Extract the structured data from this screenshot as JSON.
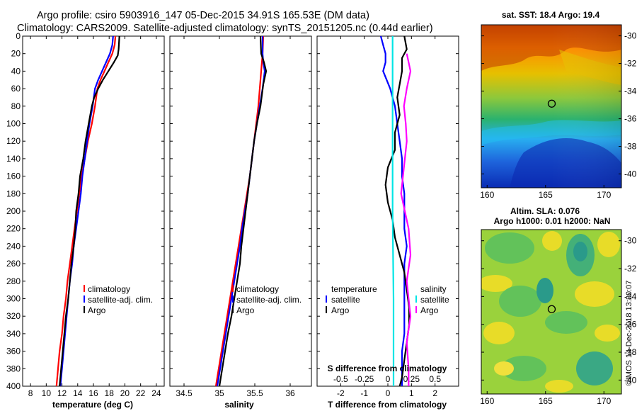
{
  "header": {
    "line1": "Argo profile: csiro 5903916_147 05-Dec-2015 34.91S 165.53E (DM data)",
    "line2": "Climatology: CARS2009. Satellite-adjusted climatology: synTS_20151205.nc (0.44d earlier)"
  },
  "colors": {
    "climatology": "#ff0000",
    "satellite": "#0000ff",
    "argo": "#000000",
    "sal_satellite": "#00e5e5",
    "sal_climatology": "#ff00ff"
  },
  "chart_data": [
    {
      "id": "temperature",
      "type": "line",
      "title": "",
      "xlabel": "temperature (deg C)",
      "ylabel": "",
      "xlim": [
        7,
        25
      ],
      "ylim": [
        400,
        0
      ],
      "xticks": [
        "8",
        "10",
        "12",
        "14",
        "16",
        "18",
        "20",
        "22",
        "24"
      ],
      "yticks": [
        "0",
        "20",
        "40",
        "60",
        "80",
        "100",
        "120",
        "140",
        "160",
        "180",
        "200",
        "220",
        "240",
        "260",
        "280",
        "300",
        "320",
        "340",
        "360",
        "380",
        "400"
      ],
      "legend": [
        "climatology",
        "satellite-adj. clim.",
        "Argo"
      ],
      "series": [
        {
          "name": "climatology",
          "color": "#ff0000",
          "points": [
            [
              18.8,
              0
            ],
            [
              18.7,
              10
            ],
            [
              18.4,
              20
            ],
            [
              17.9,
              30
            ],
            [
              17.4,
              40
            ],
            [
              16.9,
              50
            ],
            [
              16.5,
              60
            ],
            [
              16.2,
              80
            ],
            [
              15.8,
              100
            ],
            [
              15.3,
              120
            ],
            [
              14.9,
              140
            ],
            [
              14.5,
              160
            ],
            [
              14.2,
              180
            ],
            [
              13.9,
              200
            ],
            [
              13.6,
              220
            ],
            [
              13.3,
              240
            ],
            [
              13.0,
              260
            ],
            [
              12.7,
              280
            ],
            [
              12.5,
              300
            ],
            [
              12.2,
              320
            ],
            [
              12.0,
              340
            ],
            [
              11.7,
              360
            ],
            [
              11.5,
              380
            ],
            [
              11.3,
              400
            ]
          ]
        },
        {
          "name": "satellite-adj. clim.",
          "color": "#0000ff",
          "points": [
            [
              18.5,
              0
            ],
            [
              18.4,
              10
            ],
            [
              18.1,
              20
            ],
            [
              17.6,
              30
            ],
            [
              17.1,
              40
            ],
            [
              16.6,
              50
            ],
            [
              16.2,
              60
            ],
            [
              15.9,
              80
            ],
            [
              15.5,
              100
            ],
            [
              15.2,
              120
            ],
            [
              14.9,
              140
            ],
            [
              14.6,
              160
            ],
            [
              14.4,
              180
            ],
            [
              14.1,
              200
            ],
            [
              13.8,
              220
            ],
            [
              13.5,
              240
            ],
            [
              13.3,
              260
            ],
            [
              13.0,
              280
            ],
            [
              12.8,
              300
            ],
            [
              12.6,
              320
            ],
            [
              12.4,
              340
            ],
            [
              12.2,
              360
            ],
            [
              12.0,
              380
            ],
            [
              11.8,
              400
            ]
          ]
        },
        {
          "name": "Argo",
          "color": "#000000",
          "points": [
            [
              19.3,
              0
            ],
            [
              19.2,
              15
            ],
            [
              19.1,
              22
            ],
            [
              18.6,
              30
            ],
            [
              17.9,
              40
            ],
            [
              17.2,
              50
            ],
            [
              16.6,
              60
            ],
            [
              16.1,
              70
            ],
            [
              15.8,
              80
            ],
            [
              15.4,
              100
            ],
            [
              15.0,
              120
            ],
            [
              14.7,
              140
            ],
            [
              14.3,
              160
            ],
            [
              14.1,
              180
            ],
            [
              13.8,
              200
            ],
            [
              13.7,
              220
            ],
            [
              13.5,
              240
            ],
            [
              13.2,
              260
            ],
            [
              13.0,
              280
            ],
            [
              12.8,
              300
            ],
            [
              12.5,
              320
            ],
            [
              12.3,
              340
            ],
            [
              12.1,
              360
            ],
            [
              11.9,
              380
            ],
            [
              11.7,
              400
            ]
          ]
        }
      ]
    },
    {
      "id": "salinity",
      "type": "line",
      "title": "",
      "xlabel": "salinity",
      "ylabel": "",
      "xlim": [
        34.3,
        36.3
      ],
      "ylim": [
        400,
        0
      ],
      "xticks": [
        "34.5",
        "35",
        "35.5",
        "36"
      ],
      "legend": [
        "climatology",
        "satellite-adj. clim.",
        "Argo"
      ],
      "series": [
        {
          "name": "climatology",
          "color": "#ff0000",
          "points": [
            [
              35.62,
              0
            ],
            [
              35.61,
              20
            ],
            [
              35.59,
              40
            ],
            [
              35.57,
              60
            ],
            [
              35.55,
              80
            ],
            [
              35.52,
              100
            ],
            [
              35.49,
              120
            ],
            [
              35.46,
              140
            ],
            [
              35.43,
              160
            ],
            [
              35.39,
              180
            ],
            [
              35.35,
              200
            ],
            [
              35.31,
              220
            ],
            [
              35.27,
              240
            ],
            [
              35.23,
              260
            ],
            [
              35.19,
              280
            ],
            [
              35.15,
              300
            ],
            [
              35.11,
              320
            ],
            [
              35.07,
              340
            ],
            [
              35.03,
              360
            ],
            [
              34.99,
              380
            ],
            [
              34.95,
              400
            ]
          ]
        },
        {
          "name": "satellite-adj. clim.",
          "color": "#0000ff",
          "points": [
            [
              35.61,
              0
            ],
            [
              35.61,
              20
            ],
            [
              35.62,
              30
            ],
            [
              35.64,
              40
            ],
            [
              35.61,
              60
            ],
            [
              35.57,
              80
            ],
            [
              35.53,
              100
            ],
            [
              35.49,
              120
            ],
            [
              35.46,
              140
            ],
            [
              35.43,
              160
            ],
            [
              35.4,
              180
            ],
            [
              35.36,
              200
            ],
            [
              35.32,
              220
            ],
            [
              35.29,
              240
            ],
            [
              35.25,
              260
            ],
            [
              35.21,
              280
            ],
            [
              35.17,
              300
            ],
            [
              35.13,
              320
            ],
            [
              35.09,
              340
            ],
            [
              35.05,
              360
            ],
            [
              35.01,
              380
            ],
            [
              34.97,
              400
            ]
          ]
        },
        {
          "name": "Argo",
          "color": "#000000",
          "points": [
            [
              35.58,
              0
            ],
            [
              35.59,
              20
            ],
            [
              35.63,
              30
            ],
            [
              35.66,
              40
            ],
            [
              35.62,
              55
            ],
            [
              35.58,
              80
            ],
            [
              35.53,
              100
            ],
            [
              35.49,
              120
            ],
            [
              35.46,
              140
            ],
            [
              35.43,
              160
            ],
            [
              35.4,
              180
            ],
            [
              35.37,
              200
            ],
            [
              35.34,
              220
            ],
            [
              35.31,
              240
            ],
            [
              35.29,
              260
            ],
            [
              35.25,
              280
            ],
            [
              35.21,
              300
            ],
            [
              35.17,
              320
            ],
            [
              35.12,
              340
            ],
            [
              35.08,
              360
            ],
            [
              35.04,
              380
            ],
            [
              35.0,
              400
            ]
          ]
        }
      ]
    },
    {
      "id": "difference",
      "type": "line",
      "title": "",
      "xlabel": "T difference from climatology",
      "xlabel_top": "S difference from climatology",
      "ylabel": "",
      "xlim": [
        -3,
        3
      ],
      "ylim": [
        400,
        0
      ],
      "xticks": [
        "-2",
        "-1",
        "0",
        "1",
        "2"
      ],
      "xticks_top": [
        "-0.5",
        "-0.25",
        "0",
        "0.25",
        "0.5"
      ],
      "legend_left_title": "temperature",
      "legend_left": [
        "satellite",
        "Argo"
      ],
      "legend_right_title": "salinity",
      "legend_right": [
        "satellite",
        "Argo"
      ],
      "series": [
        {
          "name": "T satellite",
          "color": "#0000ff",
          "points": [
            [
              -0.3,
              0
            ],
            [
              -0.2,
              10
            ],
            [
              -0.1,
              20
            ],
            [
              -0.1,
              30
            ],
            [
              -0.2,
              40
            ],
            [
              0.1,
              60
            ],
            [
              0.3,
              80
            ],
            [
              0.4,
              100
            ],
            [
              0.5,
              120
            ],
            [
              0.6,
              140
            ],
            [
              0.6,
              160
            ],
            [
              0.7,
              180
            ],
            [
              0.7,
              200
            ],
            [
              0.7,
              220
            ],
            [
              0.8,
              240
            ],
            [
              0.7,
              260
            ],
            [
              0.7,
              280
            ],
            [
              0.7,
              300
            ],
            [
              0.7,
              320
            ],
            [
              0.7,
              340
            ],
            [
              0.6,
              360
            ],
            [
              0.6,
              380
            ],
            [
              0.6,
              400
            ]
          ]
        },
        {
          "name": "T Argo",
          "color": "#000000",
          "points": [
            [
              0.7,
              0
            ],
            [
              0.8,
              15
            ],
            [
              0.6,
              25
            ],
            [
              0.6,
              40
            ],
            [
              0.5,
              55
            ],
            [
              0.4,
              70
            ],
            [
              0.5,
              90
            ],
            [
              0.3,
              110
            ],
            [
              0.3,
              130
            ],
            [
              0.0,
              150
            ],
            [
              -0.1,
              170
            ],
            [
              0.0,
              190
            ],
            [
              0.2,
              210
            ],
            [
              0.3,
              230
            ],
            [
              0.5,
              250
            ],
            [
              0.7,
              270
            ],
            [
              0.8,
              290
            ],
            [
              0.9,
              310
            ],
            [
              0.9,
              330
            ],
            [
              0.8,
              350
            ],
            [
              0.7,
              370
            ],
            [
              0.6,
              390
            ],
            [
              0.5,
              400
            ]
          ]
        },
        {
          "name": "S satellite",
          "color": "#00e5e5",
          "points": [
            [
              0.05,
              0
            ],
            [
              0.05,
              100
            ],
            [
              0.05,
              200
            ],
            [
              0.06,
              300
            ],
            [
              0.06,
              400
            ]
          ]
        },
        {
          "name": "S Argo",
          "color": "#ff00ff",
          "points": [
            [
              0.2,
              20
            ],
            [
              0.24,
              40
            ],
            [
              0.2,
              60
            ],
            [
              0.17,
              80
            ],
            [
              0.19,
              100
            ],
            [
              0.2,
              120
            ],
            [
              0.17,
              150
            ],
            [
              0.14,
              180
            ],
            [
              0.18,
              200
            ],
            [
              0.22,
              220
            ],
            [
              0.24,
              250
            ],
            [
              0.2,
              280
            ],
            [
              0.22,
              300
            ],
            [
              0.24,
              320
            ],
            [
              0.2,
              350
            ],
            [
              0.22,
              380
            ],
            [
              0.22,
              400
            ]
          ]
        }
      ]
    },
    {
      "id": "sst_map",
      "type": "heatmap",
      "title": "sat. SST: 18.4 Argo: 19.4",
      "xticks": [
        "160",
        "165",
        "170"
      ],
      "yticks": [
        "-30",
        "-32",
        "-34",
        "-36",
        "-38",
        "-40"
      ],
      "xlim": [
        159.5,
        171.5
      ],
      "ylim": [
        -41,
        -29.2
      ],
      "marker": {
        "lon": 165.53,
        "lat": -34.91
      }
    },
    {
      "id": "sla_map",
      "type": "heatmap",
      "title": "Altim. SLA: 0.076",
      "subtitle": "Argo h1000: 0.01 h2000: NaN",
      "xticks": [
        "160",
        "165",
        "170"
      ],
      "yticks": [
        "-30",
        "-32",
        "-34",
        "-36",
        "-38",
        "-40"
      ],
      "xlim": [
        159.5,
        171.5
      ],
      "ylim": [
        -41,
        -29.2
      ],
      "marker": {
        "lon": 165.53,
        "lat": -34.91
      }
    }
  ],
  "credit": "©IMOS 14-Dec-2018 13:20:07"
}
